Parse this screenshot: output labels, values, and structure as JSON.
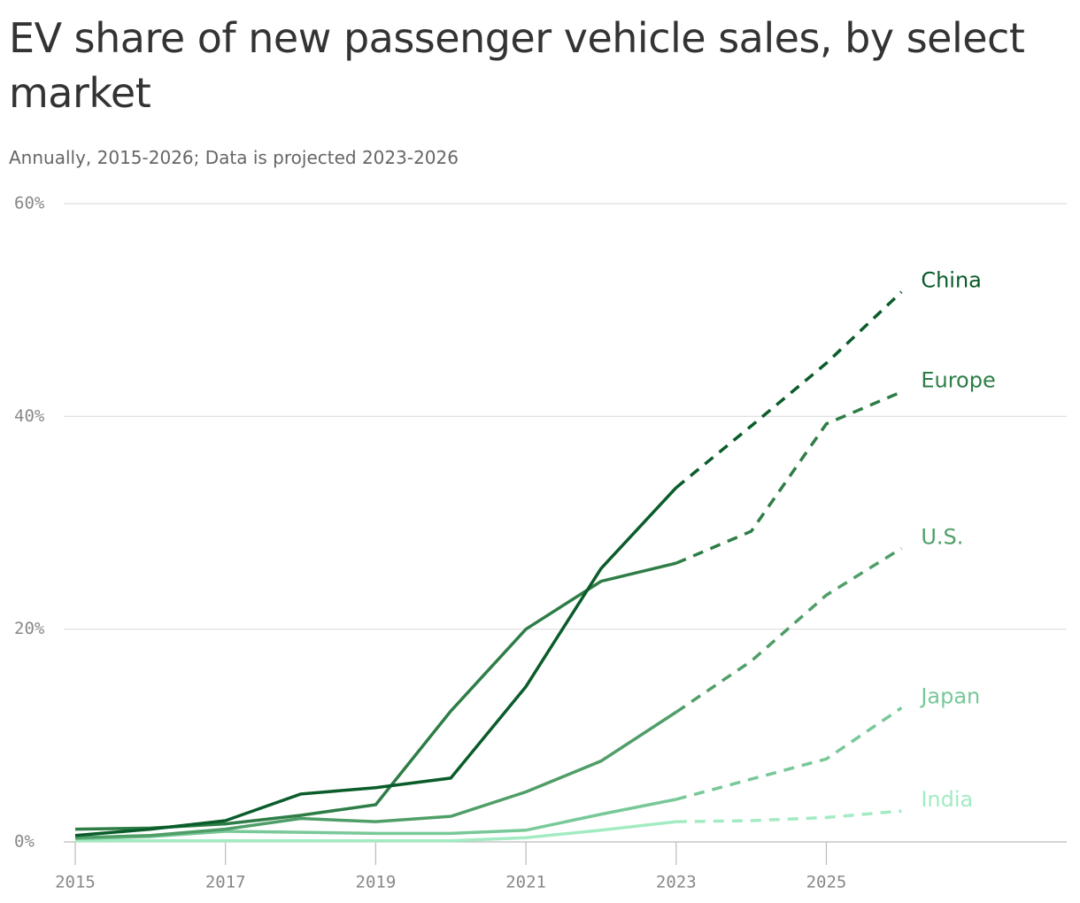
{
  "chart_data": {
    "type": "line",
    "title": "EV share of new passenger vehicle sales, by select market",
    "subtitle": "Annually, 2015-2026; Data is projected 2023-2026",
    "x": [
      2015,
      2016,
      2017,
      2018,
      2019,
      2020,
      2021,
      2022,
      2023,
      2024,
      2025,
      2026
    ],
    "projected_from": 2023,
    "xlim": [
      2015,
      2028.2
    ],
    "xticks": [
      2015,
      2017,
      2019,
      2021,
      2023,
      2025
    ],
    "ylim": [
      0,
      60
    ],
    "yticks": [
      {
        "value": 0,
        "label": "0%"
      },
      {
        "value": 20,
        "label": "20%"
      },
      {
        "value": 40,
        "label": "40%"
      },
      {
        "value": 60,
        "label": "60%"
      }
    ],
    "grid": true,
    "series": [
      {
        "name": "India",
        "color": "#a3ebc2",
        "values": [
          0.1,
          0.1,
          0.1,
          0.1,
          0.1,
          0.1,
          0.4,
          1.1,
          1.9,
          2.0,
          2.3,
          2.9
        ]
      },
      {
        "name": "Japan",
        "color": "#78c898",
        "values": [
          0.3,
          0.5,
          1.0,
          0.9,
          0.8,
          0.8,
          1.1,
          2.6,
          4.0,
          5.9,
          7.8,
          12.6
        ]
      },
      {
        "name": "U.S.",
        "color": "#4f9e68",
        "values": [
          0.4,
          0.6,
          1.2,
          2.2,
          1.9,
          2.4,
          4.7,
          7.6,
          12.2,
          17.0,
          23.2,
          27.6
        ]
      },
      {
        "name": "Europe",
        "color": "#2e7d46",
        "values": [
          1.2,
          1.3,
          1.7,
          2.5,
          3.5,
          12.3,
          20.0,
          24.5,
          26.2,
          29.2,
          39.3,
          42.3
        ]
      },
      {
        "name": "China",
        "color": "#0a5c2a",
        "values": [
          0.6,
          1.2,
          2.0,
          4.5,
          5.1,
          6.0,
          14.6,
          25.7,
          33.3,
          39.1,
          45.0,
          51.7
        ]
      }
    ]
  }
}
